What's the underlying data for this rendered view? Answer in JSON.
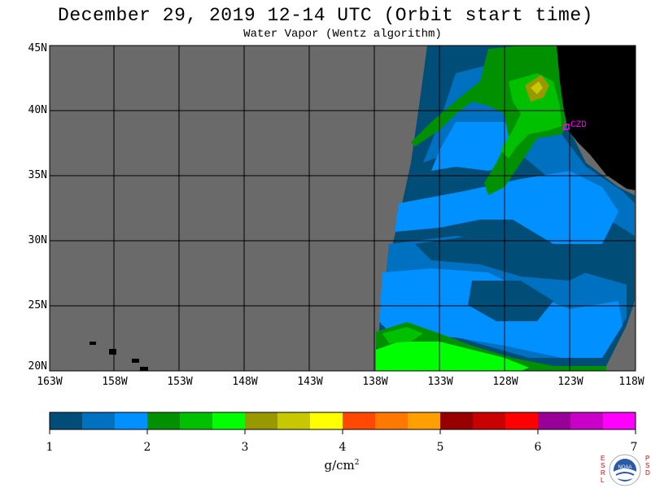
{
  "header": {
    "title": "December 29, 2019  12-14 UTC  (Orbit start time)",
    "subtitle": "Water Vapor (Wentz algorithm)"
  },
  "map": {
    "lat_labels": [
      "45N",
      "40N",
      "35N",
      "30N",
      "25N",
      "20N"
    ],
    "lon_labels": [
      "163W",
      "158W",
      "153W",
      "148W",
      "143W",
      "138W",
      "133W",
      "128W",
      "123W",
      "118W"
    ],
    "station_label": "CZD",
    "colors": {
      "no_data": "#6a6a6a",
      "land": "#000000",
      "grid": "#000000",
      "station": "#ff00ff"
    }
  },
  "colorbar": {
    "ticks": [
      "1",
      "2",
      "3",
      "4",
      "5",
      "6",
      "7"
    ],
    "units": "g/cm",
    "units_exp": "2",
    "colors": [
      "#004e78",
      "#0070c0",
      "#0090ff",
      "#009000",
      "#00c000",
      "#00ff00",
      "#989800",
      "#c8c800",
      "#ffff00",
      "#ff4800",
      "#ff7800",
      "#ffa000",
      "#980000",
      "#c80000",
      "#ff0000",
      "#980098",
      "#c800c8",
      "#ff00ff"
    ]
  },
  "logo": {
    "left_text": "ESRL",
    "right_text": "PSD",
    "center_text": "NOAA"
  }
}
